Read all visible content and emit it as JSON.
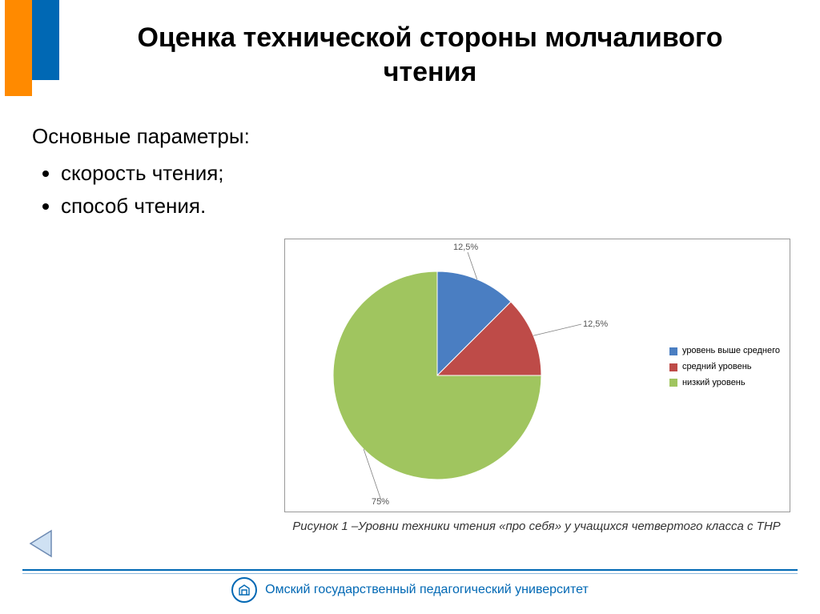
{
  "accent": {
    "orange": "#ff8a00",
    "blue": "#0068b4",
    "blue_light": "#8cb9dd"
  },
  "title": "Оценка технической стороны молчаливого чтения",
  "body": {
    "intro": "Основные параметры:",
    "items": [
      "скорость чтения;",
      "способ чтения."
    ]
  },
  "chart": {
    "type": "pie",
    "border_color": "#999999",
    "background_color": "#ffffff",
    "label_color": "#555555",
    "leader_color": "#808080",
    "radius": 130,
    "label_fontsize": 11,
    "legend_fontsize": 11,
    "slices": [
      {
        "name": "уровень выше среднего",
        "value": 12.5,
        "label": "12,5%",
        "color": "#4a7ec2"
      },
      {
        "name": "средний уровень",
        "value": 12.5,
        "label": "12,5%",
        "color": "#be4b48"
      },
      {
        "name": "низкий уровень",
        "value": 75.0,
        "label": "75%",
        "color": "#a0c55f"
      }
    ],
    "caption": "Рисунок 1 –Уровни техники чтения «про себя» у учащихся четвертого класса с ТНР"
  },
  "footer": {
    "text": "Омский государственный педагогический университет"
  },
  "nav": {
    "back_icon": "triangle-left",
    "back_stroke": "#6e8bb3",
    "back_fill": "#cfe1f3"
  }
}
